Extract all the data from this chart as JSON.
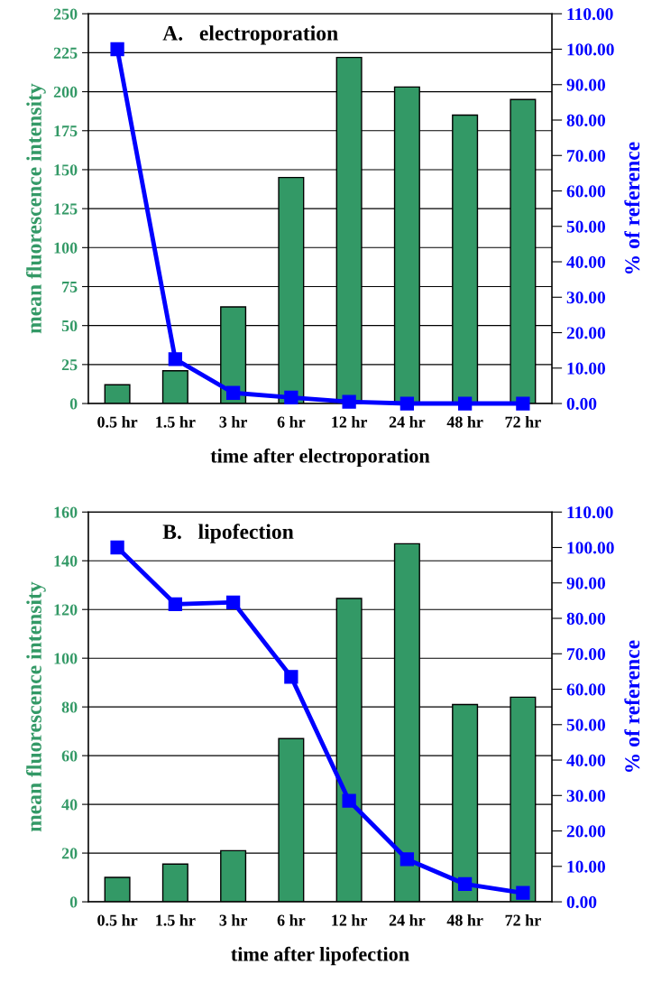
{
  "chart_data": [
    {
      "type": "bar",
      "title": "A.   electroporation",
      "xlabel": "time after electroporation",
      "ylabel": "mean fluorescence intensity",
      "y2label": "% of reference",
      "categories": [
        "0.5 hr",
        "1.5 hr",
        "3 hr",
        "6 hr",
        "12 hr",
        "24 hr",
        "48 hr",
        "72 hr"
      ],
      "series": [
        {
          "color": "#339966",
          "values": [
            12,
            21,
            62,
            145,
            222,
            203,
            185,
            195
          ]
        },
        {
          "type": "line",
          "axis": "y2",
          "color": "#0000ff",
          "marker": "square",
          "values": [
            100,
            12.5,
            3,
            1.7,
            0.5,
            0,
            0,
            0
          ]
        }
      ],
      "ylim": [
        0,
        250
      ],
      "yticks": [
        0,
        25,
        50,
        75,
        100,
        125,
        150,
        175,
        200,
        225,
        250
      ],
      "y2lim": [
        0,
        110
      ],
      "y2ticks": [
        {
          "value": 0,
          "label": "0.00"
        },
        {
          "value": 10,
          "label": "10.00"
        },
        {
          "value": 20,
          "label": "20.00"
        },
        {
          "value": 30,
          "label": "30.00"
        },
        {
          "value": 40,
          "label": "40.00"
        },
        {
          "value": 50,
          "label": "50.00"
        },
        {
          "value": 60,
          "label": "60.00"
        },
        {
          "value": 70,
          "label": "70.00"
        },
        {
          "value": 80,
          "label": "80.00"
        },
        {
          "value": 90,
          "label": "90.00"
        },
        {
          "value": 100,
          "label": "100.00"
        },
        {
          "value": 110,
          "label": "110.00"
        }
      ],
      "grid": "y"
    },
    {
      "type": "bar",
      "title": "B.   lipofection",
      "xlabel": "time after lipofection",
      "ylabel": "mean fluorescence intensity",
      "y2label": "% of reference",
      "categories": [
        "0.5 hr",
        "1.5 hr",
        "3 hr",
        "6 hr",
        "12 hr",
        "24 hr",
        "48 hr",
        "72 hr"
      ],
      "series": [
        {
          "color": "#339966",
          "values": [
            10,
            15.5,
            21,
            67,
            124.5,
            147,
            81,
            84
          ]
        },
        {
          "type": "line",
          "axis": "y2",
          "color": "#0000ff",
          "marker": "square",
          "values": [
            100,
            84,
            84.5,
            63.5,
            28.5,
            12,
            5,
            2.5
          ]
        }
      ],
      "ylim": [
        0,
        160
      ],
      "yticks": [
        0,
        20,
        40,
        60,
        80,
        100,
        120,
        140,
        160
      ],
      "y2lim": [
        0,
        110
      ],
      "y2ticks": [
        {
          "value": 0,
          "label": "0.00"
        },
        {
          "value": 10,
          "label": "10.00"
        },
        {
          "value": 20,
          "label": "20.00"
        },
        {
          "value": 30,
          "label": "30.00"
        },
        {
          "value": 40,
          "label": "40.00"
        },
        {
          "value": 50,
          "label": "50.00"
        },
        {
          "value": 60,
          "label": "60.00"
        },
        {
          "value": 70,
          "label": "70.00"
        },
        {
          "value": 80,
          "label": "80.00"
        },
        {
          "value": 90,
          "label": "90.00"
        },
        {
          "value": 100,
          "label": "100.00"
        },
        {
          "value": 110,
          "label": "110.00"
        }
      ],
      "grid": "y"
    }
  ]
}
